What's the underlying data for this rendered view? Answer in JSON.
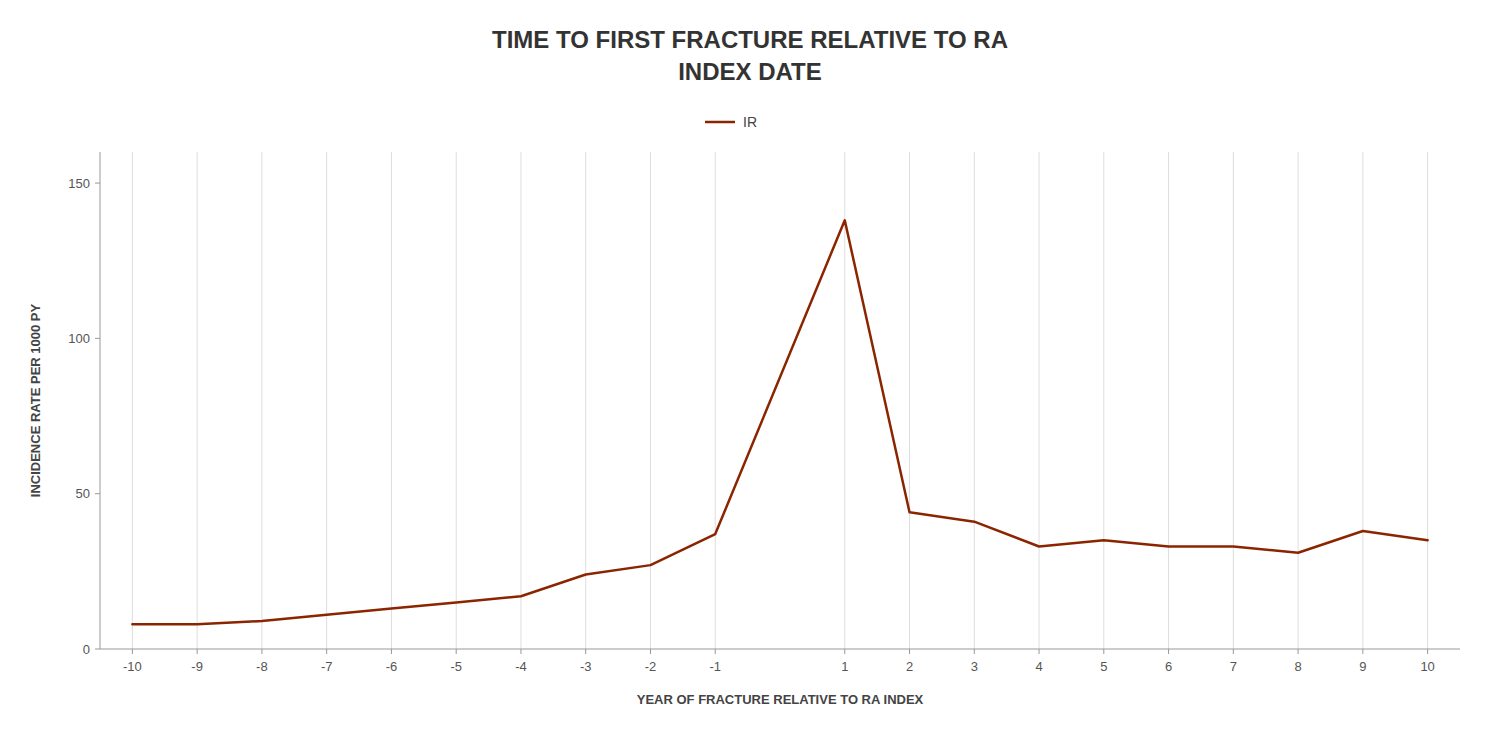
{
  "chart_data": {
    "type": "line",
    "title": "TIME TO FIRST FRACTURE RELATIVE TO RA\nINDEX DATE",
    "x_label": "YEAR OF FRACTURE RELATIVE TO RA INDEX",
    "y_label": "INCIDENCE RATE PER 1000 PY",
    "x": [
      -10,
      -9,
      -8,
      -7,
      -6,
      -5,
      -4,
      -3,
      -2,
      -1,
      1,
      2,
      3,
      4,
      5,
      6,
      7,
      8,
      9,
      10
    ],
    "series": [
      {
        "name": "IR",
        "color": "#8B2500",
        "values": [
          8,
          8,
          9,
          11,
          13,
          15,
          17,
          24,
          27,
          37,
          138,
          44,
          41,
          33,
          35,
          33,
          33,
          31,
          38,
          35
        ]
      }
    ],
    "xlim": [
      -10.5,
      10.5
    ],
    "xticks": [
      -10,
      -9,
      -8,
      -7,
      -6,
      -5,
      -4,
      -3,
      -2,
      -1,
      1,
      2,
      3,
      4,
      5,
      6,
      7,
      8,
      9,
      10
    ],
    "ylim": [
      0,
      160
    ],
    "yticks": [
      0,
      50,
      100,
      150
    ],
    "grid": "x",
    "legend": "top"
  }
}
